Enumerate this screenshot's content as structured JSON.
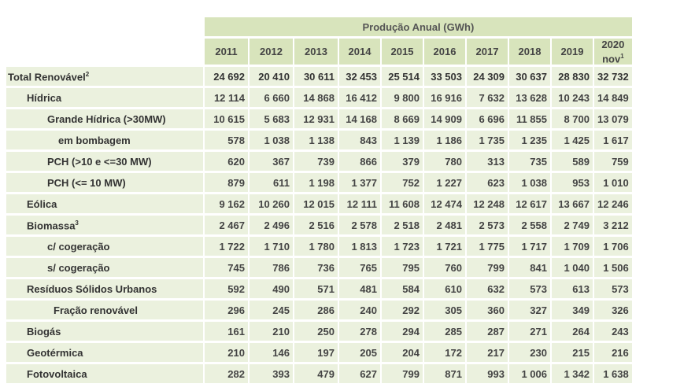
{
  "table": {
    "header_title": "Produção Anual (GWh)",
    "years": [
      "2011",
      "2012",
      "2013",
      "2014",
      "2015",
      "2016",
      "2017",
      "2018",
      "2019",
      "2020"
    ],
    "last_year_note": "nov",
    "last_year_sup": "1",
    "rows": [
      {
        "label": "Total Renovável",
        "sup": "2",
        "values": [
          "24 692",
          "20 410",
          "30 611",
          "32 453",
          "25 514",
          "33 503",
          "24 309",
          "30 637",
          "28 830",
          "32 732"
        ]
      },
      {
        "label": "Hídrica",
        "sup": "",
        "values": [
          "12 114",
          "6 660",
          "14 868",
          "16 412",
          "9 800",
          "16 916",
          "7 632",
          "13 628",
          "10 243",
          "14 849"
        ]
      },
      {
        "label": "Grande Hídrica (>30MW)",
        "sup": "",
        "values": [
          "10 615",
          "5 683",
          "12 931",
          "14 168",
          "8 669",
          "14 909",
          "6 696",
          "11 855",
          "8 700",
          "13 079"
        ]
      },
      {
        "label": "em bombagem",
        "sup": "",
        "values": [
          "578",
          "1 038",
          "1 138",
          "843",
          "1 139",
          "1 186",
          "1 735",
          "1 235",
          "1 425",
          "1 617"
        ]
      },
      {
        "label": "PCH (>10 e <=30 MW)",
        "sup": "",
        "values": [
          "620",
          "367",
          "739",
          "866",
          "379",
          "780",
          "313",
          "735",
          "589",
          "759"
        ]
      },
      {
        "label": "PCH (<= 10 MW)",
        "sup": "",
        "values": [
          "879",
          "611",
          "1 198",
          "1 377",
          "752",
          "1 227",
          "623",
          "1 038",
          "953",
          "1 010"
        ]
      },
      {
        "label": "Eólica",
        "sup": "",
        "values": [
          "9 162",
          "10 260",
          "12 015",
          "12 111",
          "11 608",
          "12 474",
          "12 248",
          "12 617",
          "13 667",
          "12 246"
        ]
      },
      {
        "label": "Biomassa",
        "sup": "3",
        "values": [
          "2 467",
          "2 496",
          "2 516",
          "2 578",
          "2 518",
          "2 481",
          "2 573",
          "2 558",
          "2 749",
          "3 212"
        ]
      },
      {
        "label": "c/ cogeração",
        "sup": "",
        "values": [
          "1 722",
          "1 710",
          "1 780",
          "1 813",
          "1 723",
          "1 721",
          "1 775",
          "1 717",
          "1 709",
          "1 706"
        ]
      },
      {
        "label": "s/ cogeração",
        "sup": "",
        "values": [
          "745",
          "786",
          "736",
          "765",
          "795",
          "760",
          "799",
          "841",
          "1 040",
          "1 506"
        ]
      },
      {
        "label": "Resíduos Sólidos Urbanos",
        "sup": "",
        "values": [
          "592",
          "490",
          "571",
          "481",
          "584",
          "610",
          "632",
          "573",
          "613",
          "573"
        ]
      },
      {
        "label": "Fração renovável",
        "sup": "",
        "values": [
          "296",
          "245",
          "286",
          "240",
          "292",
          "305",
          "360",
          "327",
          "349",
          "326"
        ]
      },
      {
        "label": "Biogás",
        "sup": "",
        "values": [
          "161",
          "210",
          "250",
          "278",
          "294",
          "285",
          "287",
          "271",
          "264",
          "243"
        ]
      },
      {
        "label": "Geotérmica",
        "sup": "",
        "values": [
          "210",
          "146",
          "197",
          "205",
          "204",
          "172",
          "217",
          "230",
          "215",
          "216"
        ]
      },
      {
        "label": "Fotovoltaica",
        "sup": "",
        "values": [
          "282",
          "393",
          "479",
          "627",
          "799",
          "871",
          "993",
          "1 006",
          "1 342",
          "1 638"
        ]
      }
    ]
  }
}
